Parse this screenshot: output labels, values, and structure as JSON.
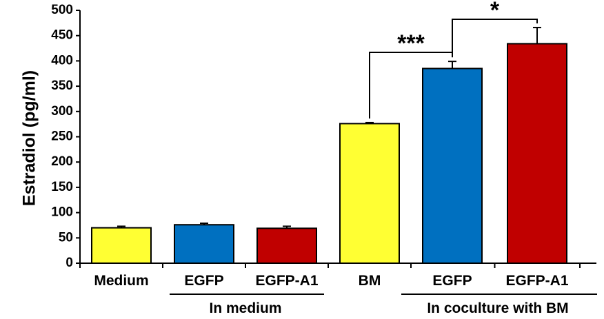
{
  "chart_data": {
    "type": "bar",
    "title": "",
    "xlabel": "",
    "ylabel": "Estradiol (pg/ml)",
    "ylim": [
      0,
      500
    ],
    "yticks": [
      0,
      50,
      100,
      150,
      200,
      250,
      300,
      350,
      400,
      450,
      500
    ],
    "grid": false,
    "legend": "none",
    "categories": [
      "Medium",
      "EGFP",
      "EGFP-A1",
      "BM",
      "EGFP",
      "EGFP-A1"
    ],
    "values": [
      70,
      76,
      69,
      276,
      385,
      434
    ],
    "errors": [
      3,
      3,
      4,
      2,
      14,
      32
    ],
    "colors": [
      "#ffff33",
      "#0070c0",
      "#c00000",
      "#ffff33",
      "#0070c0",
      "#c00000"
    ],
    "groups": [
      {
        "label": "In medium",
        "members": [
          1,
          2
        ]
      },
      {
        "label": "In coculture with BM",
        "members": [
          4,
          5
        ]
      }
    ],
    "significance": [
      {
        "from": 3,
        "to": 4,
        "label": "***"
      },
      {
        "from": 4,
        "to": 5,
        "label": "*"
      }
    ]
  }
}
